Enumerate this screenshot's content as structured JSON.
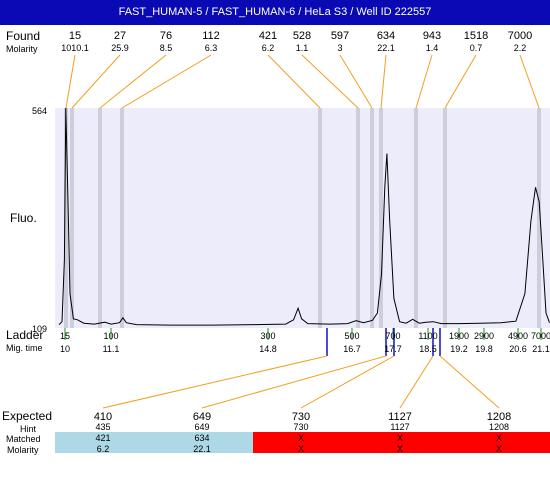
{
  "title": "FAST_HUMAN-5 / FAST_HUMAN-6 / HeLa S3 / Well ID 222557",
  "row_labels": {
    "found": "Found",
    "molarity": "Molarity",
    "fluo": "Fluo.",
    "ladder": "Ladder",
    "mig_time": "Mig. time",
    "expected": "Expected",
    "hint": "Hint",
    "matched": "Matched",
    "molarity_bottom": "Molarity"
  },
  "colors": {
    "title_bg": "#0a0ab4",
    "plot_bg": "#ececfb",
    "peak_band": "#c8c8d6",
    "orange_line": "#f0a020",
    "green_line": "#228822",
    "blue_marker": "#1010c8",
    "matched_ok": "#add8e6",
    "matched_fail": "#ff0000"
  },
  "chart_data": {
    "type": "line",
    "title": "FAST_HUMAN-5 / FAST_HUMAN-6 / HeLa S3 / Well ID 222557",
    "ylabel": "Fluo.",
    "xlabel": "Mig. time",
    "y_ticks": [
      "564",
      "109"
    ],
    "ylim": [
      109,
      564
    ],
    "xlim": [
      9.8,
      21.15
    ],
    "found_peaks": [
      {
        "size": "15",
        "molarity": "1010.1",
        "time": 10.05
      },
      {
        "size": "27",
        "molarity": "25.9",
        "time": 10.3
      },
      {
        "size": "76",
        "molarity": "8.5",
        "time": 10.95
      },
      {
        "size": "112",
        "molarity": "6.3",
        "time": 11.35
      },
      {
        "size": "421",
        "molarity": "6.2",
        "time": 15.5
      },
      {
        "size": "528",
        "molarity": "1.1",
        "time": 16.8
      },
      {
        "size": "597",
        "molarity": "3",
        "time": 17.3
      },
      {
        "size": "634",
        "molarity": "22.1",
        "time": 17.55
      },
      {
        "size": "943",
        "molarity": "1.4",
        "time": 18.1
      },
      {
        "size": "1518",
        "molarity": "0.7",
        "time": 18.6
      },
      {
        "size": "7000",
        "molarity": "2.2",
        "time": 21.1
      }
    ],
    "ladder": [
      {
        "size": "15",
        "time": "10"
      },
      {
        "size": "100",
        "time": "11.1"
      },
      {
        "size": "300",
        "time": "14.8"
      },
      {
        "size": "500",
        "time": "16.7"
      },
      {
        "size": "700",
        "time": "17.7"
      },
      {
        "size": "1100",
        "time": "18.5"
      },
      {
        "size": "1900",
        "time": "19.2"
      },
      {
        "size": "2900",
        "time": "19.8"
      },
      {
        "size": "4900",
        "time": "20.6"
      },
      {
        "size": "7000",
        "time": "21.1"
      }
    ],
    "expected_markers": [
      {
        "size": "410",
        "time": 15.6
      },
      {
        "size": "649",
        "time": 17.6
      },
      {
        "size": "730",
        "time": 17.82
      },
      {
        "size": "1127",
        "time": 18.55
      },
      {
        "size": "1208",
        "time": 18.62
      }
    ],
    "trace": [
      [
        9.8,
        116
      ],
      [
        9.9,
        122
      ],
      [
        9.98,
        250
      ],
      [
        10.02,
        564
      ],
      [
        10.07,
        380
      ],
      [
        10.12,
        180
      ],
      [
        10.2,
        128
      ],
      [
        10.3,
        126
      ],
      [
        10.45,
        119
      ],
      [
        10.7,
        117
      ],
      [
        10.95,
        121
      ],
      [
        11.1,
        117
      ],
      [
        11.3,
        120
      ],
      [
        11.38,
        130
      ],
      [
        11.46,
        120
      ],
      [
        11.7,
        116
      ],
      [
        12.5,
        115
      ],
      [
        13.5,
        115
      ],
      [
        14.5,
        116
      ],
      [
        15.2,
        117
      ],
      [
        15.38,
        126
      ],
      [
        15.48,
        150
      ],
      [
        15.56,
        128
      ],
      [
        15.7,
        118
      ],
      [
        16.2,
        117
      ],
      [
        16.6,
        118
      ],
      [
        16.8,
        124
      ],
      [
        16.98,
        120
      ],
      [
        17.2,
        125
      ],
      [
        17.32,
        140
      ],
      [
        17.42,
        220
      ],
      [
        17.5,
        400
      ],
      [
        17.55,
        470
      ],
      [
        17.62,
        330
      ],
      [
        17.72,
        170
      ],
      [
        17.85,
        122
      ],
      [
        18.0,
        119
      ],
      [
        18.15,
        127
      ],
      [
        18.3,
        119
      ],
      [
        18.45,
        121
      ],
      [
        18.62,
        122
      ],
      [
        18.8,
        118
      ],
      [
        19.2,
        118
      ],
      [
        19.7,
        119
      ],
      [
        20.2,
        120
      ],
      [
        20.55,
        123
      ],
      [
        20.75,
        180
      ],
      [
        20.88,
        330
      ],
      [
        20.98,
        400
      ],
      [
        21.06,
        370
      ],
      [
        21.13,
        260
      ],
      [
        21.2,
        140
      ],
      [
        21.27,
        120
      ]
    ]
  },
  "expected_table": {
    "columns": [
      {
        "expected": "410",
        "hint": "435",
        "matched": "421",
        "molarity": "6.2",
        "status": "ok"
      },
      {
        "expected": "649",
        "hint": "649",
        "matched": "634",
        "molarity": "22.1",
        "status": "ok"
      },
      {
        "expected": "730",
        "hint": "730",
        "matched": "X",
        "molarity": "X",
        "status": "fail"
      },
      {
        "expected": "1127",
        "hint": "1127",
        "matched": "X",
        "molarity": "X",
        "status": "fail"
      },
      {
        "expected": "1208",
        "hint": "1208",
        "matched": "X",
        "molarity": "X",
        "status": "fail"
      }
    ]
  }
}
